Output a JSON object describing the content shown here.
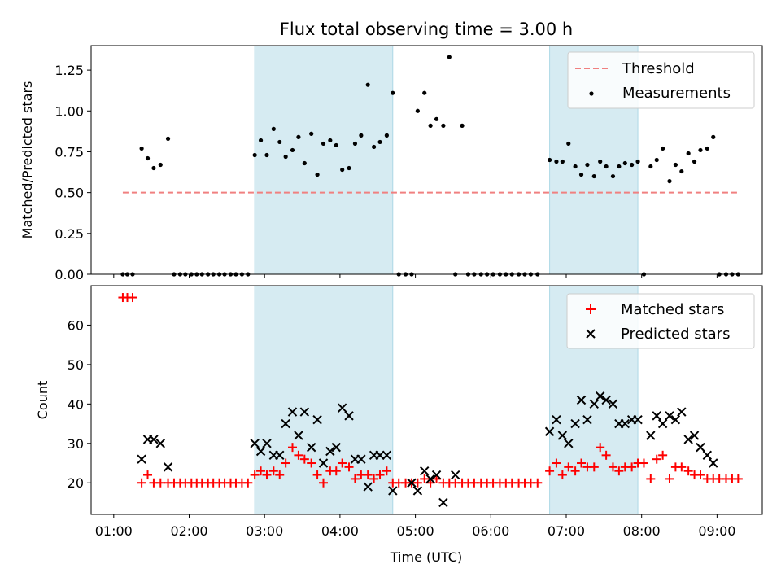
{
  "chart_data": [
    {
      "type": "scatter",
      "title": "Flux total observing time = 3.00 h",
      "xlabel": "",
      "ylabel": "Matched/Predicted stars",
      "x_unit": "hours UTC",
      "xlim": [
        0.7,
        9.6
      ],
      "ylim": [
        0.0,
        1.4
      ],
      "yticks": [
        0.0,
        0.25,
        0.5,
        0.75,
        1.0,
        1.25
      ],
      "ytick_labels": [
        "0.00",
        "0.25",
        "0.50",
        "0.75",
        "1.00",
        "1.25"
      ],
      "grid": false,
      "legend_position": "upper right",
      "shaded_intervals": [
        [
          2.87,
          4.7
        ],
        [
          6.78,
          7.95
        ]
      ],
      "shade_color": "#add8e6",
      "threshold": {
        "name": "Threshold",
        "y": 0.5,
        "x_range": [
          1.12,
          9.3
        ],
        "color": "#f08080"
      },
      "series": [
        {
          "name": "Measurements",
          "color": "#000000",
          "x": [
            1.12,
            1.18,
            1.25,
            1.37,
            1.45,
            1.53,
            1.62,
            1.72,
            1.8,
            1.88,
            1.95,
            2.03,
            2.1,
            2.17,
            2.25,
            2.32,
            2.4,
            2.47,
            2.55,
            2.62,
            2.7,
            2.78,
            2.87,
            2.95,
            3.03,
            3.12,
            3.2,
            3.28,
            3.37,
            3.45,
            3.53,
            3.62,
            3.7,
            3.78,
            3.87,
            3.95,
            4.03,
            4.12,
            4.2,
            4.28,
            4.37,
            4.45,
            4.53,
            4.62,
            4.7,
            4.78,
            4.87,
            4.95,
            5.03,
            5.12,
            5.2,
            5.28,
            5.37,
            5.45,
            5.53,
            5.62,
            5.7,
            5.78,
            5.87,
            5.95,
            6.03,
            6.12,
            6.2,
            6.28,
            6.37,
            6.45,
            6.53,
            6.62,
            6.78,
            6.87,
            6.95,
            7.03,
            7.12,
            7.2,
            7.28,
            7.37,
            7.45,
            7.53,
            7.62,
            7.7,
            7.78,
            7.87,
            7.95,
            8.03,
            8.12,
            8.2,
            8.28,
            8.37,
            8.45,
            8.53,
            8.62,
            8.7,
            8.78,
            8.87,
            8.95,
            9.03,
            9.12,
            9.2,
            9.28
          ],
          "y": [
            0.0,
            0.0,
            0.0,
            0.77,
            0.71,
            0.65,
            0.67,
            0.83,
            0.0,
            0.0,
            0.0,
            0.0,
            0.0,
            0.0,
            0.0,
            0.0,
            0.0,
            0.0,
            0.0,
            0.0,
            0.0,
            0.0,
            0.73,
            0.82,
            0.73,
            0.89,
            0.81,
            0.72,
            0.76,
            0.84,
            0.68,
            0.86,
            0.61,
            0.8,
            0.82,
            0.79,
            0.64,
            0.65,
            0.8,
            0.85,
            1.16,
            0.78,
            0.81,
            0.85,
            1.11,
            0.0,
            0.0,
            0.0,
            1.0,
            1.11,
            0.91,
            0.95,
            0.91,
            1.33,
            0.0,
            0.91,
            0.0,
            0.0,
            0.0,
            0.0,
            0.0,
            0.0,
            0.0,
            0.0,
            0.0,
            0.0,
            0.0,
            0.0,
            0.7,
            0.69,
            0.69,
            0.8,
            0.66,
            0.61,
            0.67,
            0.6,
            0.69,
            0.66,
            0.6,
            0.66,
            0.68,
            0.67,
            0.69,
            0.0,
            0.66,
            0.7,
            0.77,
            0.57,
            0.67,
            0.63,
            0.74,
            0.69,
            0.76,
            0.77,
            0.84,
            0.0,
            0.0,
            0.0,
            0.0
          ]
        }
      ]
    },
    {
      "type": "scatter",
      "title": "",
      "xlabel": "Time (UTC)",
      "ylabel": "Count",
      "x_unit": "hours UTC",
      "xlim": [
        0.7,
        9.6
      ],
      "ylim": [
        12,
        70
      ],
      "xticks": [
        1,
        2,
        3,
        4,
        5,
        6,
        7,
        8,
        9
      ],
      "xtick_labels": [
        "01:00",
        "02:00",
        "03:00",
        "04:00",
        "05:00",
        "06:00",
        "07:00",
        "08:00",
        "09:00"
      ],
      "yticks": [
        20,
        30,
        40,
        50,
        60
      ],
      "ytick_labels": [
        "20",
        "30",
        "40",
        "50",
        "60"
      ],
      "grid": false,
      "legend_position": "upper right",
      "shaded_intervals": [
        [
          2.87,
          4.7
        ],
        [
          6.78,
          7.95
        ]
      ],
      "shade_color": "#add8e6",
      "series": [
        {
          "name": "Matched stars",
          "marker": "+",
          "color": "#ff0000",
          "x": [
            1.12,
            1.18,
            1.25,
            1.37,
            1.45,
            1.53,
            1.62,
            1.72,
            1.8,
            1.88,
            1.95,
            2.03,
            2.1,
            2.17,
            2.25,
            2.32,
            2.4,
            2.47,
            2.55,
            2.62,
            2.7,
            2.78,
            2.87,
            2.95,
            3.03,
            3.12,
            3.2,
            3.28,
            3.37,
            3.45,
            3.53,
            3.62,
            3.7,
            3.78,
            3.87,
            3.95,
            4.03,
            4.12,
            4.2,
            4.28,
            4.37,
            4.45,
            4.53,
            4.62,
            4.7,
            4.78,
            4.87,
            4.95,
            5.03,
            5.12,
            5.2,
            5.28,
            5.37,
            5.45,
            5.53,
            5.62,
            5.7,
            5.78,
            5.87,
            5.95,
            6.03,
            6.12,
            6.2,
            6.28,
            6.37,
            6.45,
            6.53,
            6.62,
            6.78,
            6.87,
            6.95,
            7.03,
            7.12,
            7.2,
            7.28,
            7.37,
            7.45,
            7.53,
            7.62,
            7.7,
            7.78,
            7.87,
            7.95,
            8.03,
            8.12,
            8.2,
            8.28,
            8.37,
            8.45,
            8.53,
            8.62,
            8.7,
            8.78,
            8.87,
            8.95,
            9.03,
            9.12,
            9.2,
            9.28
          ],
          "y": [
            67,
            67,
            67,
            20,
            22,
            20,
            20,
            20,
            20,
            20,
            20,
            20,
            20,
            20,
            20,
            20,
            20,
            20,
            20,
            20,
            20,
            20,
            22,
            23,
            22,
            23,
            22,
            25,
            29,
            27,
            26,
            25,
            22,
            20,
            23,
            23,
            25,
            24,
            21,
            22,
            22,
            21,
            22,
            23,
            20,
            20,
            20,
            20,
            20,
            21,
            20,
            21,
            20,
            20,
            20,
            20,
            20,
            20,
            20,
            20,
            20,
            20,
            20,
            20,
            20,
            20,
            20,
            20,
            23,
            25,
            22,
            24,
            23,
            25,
            24,
            24,
            29,
            27,
            24,
            23,
            24,
            24,
            25,
            25,
            21,
            26,
            27,
            21,
            24,
            24,
            23,
            22,
            22,
            21,
            21,
            21,
            21,
            21,
            21
          ]
        },
        {
          "name": "Predicted stars",
          "marker": "x",
          "color": "#000000",
          "x": [
            1.37,
            1.45,
            1.53,
            1.62,
            1.72,
            2.87,
            2.95,
            3.03,
            3.12,
            3.2,
            3.28,
            3.37,
            3.45,
            3.53,
            3.62,
            3.7,
            3.78,
            3.87,
            3.95,
            4.03,
            4.12,
            4.2,
            4.28,
            4.37,
            4.45,
            4.53,
            4.62,
            4.7,
            4.95,
            5.03,
            5.12,
            5.2,
            5.28,
            5.37,
            5.53,
            6.78,
            6.87,
            6.95,
            7.03,
            7.12,
            7.2,
            7.28,
            7.37,
            7.45,
            7.53,
            7.62,
            7.7,
            7.78,
            7.87,
            7.95,
            8.12,
            8.2,
            8.28,
            8.37,
            8.45,
            8.53,
            8.62,
            8.7,
            8.78,
            8.87,
            8.95
          ],
          "y": [
            26,
            31,
            31,
            30,
            24,
            30,
            28,
            30,
            27,
            27,
            35,
            38,
            32,
            38,
            29,
            36,
            25,
            28,
            29,
            39,
            37,
            26,
            26,
            19,
            27,
            27,
            27,
            18,
            20,
            18,
            23,
            21,
            22,
            15,
            22,
            33,
            36,
            32,
            30,
            35,
            41,
            36,
            40,
            42,
            41,
            40,
            35,
            35,
            36,
            36,
            32,
            37,
            35,
            37,
            36,
            38,
            31,
            32,
            29,
            27,
            25
          ]
        }
      ]
    }
  ]
}
